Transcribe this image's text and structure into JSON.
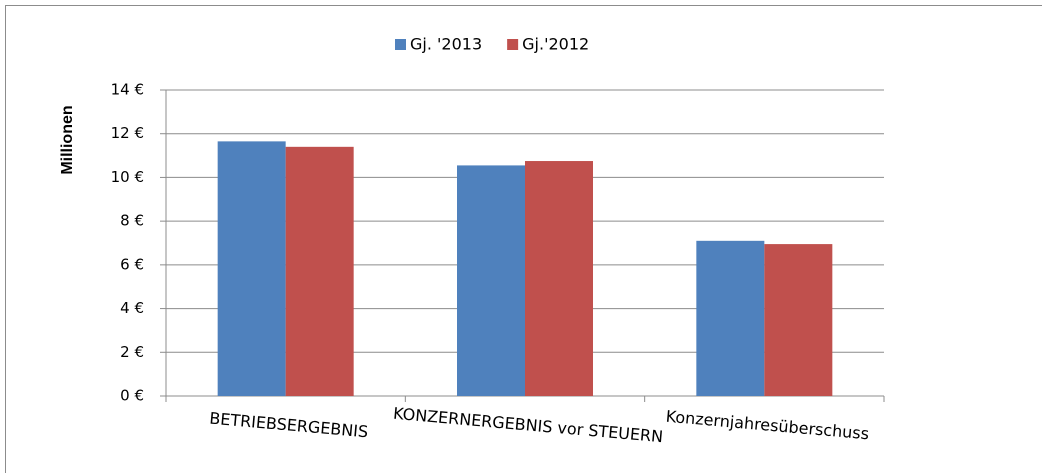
{
  "chart_data": {
    "type": "bar",
    "categories": [
      "BETRIEBSERGEBNIS",
      "KONZERNERGEBNIS vor STEUERN",
      "Konzernjahresüberschuss"
    ],
    "series": [
      {
        "name": "Gj. '2013",
        "color": "#4f81bd",
        "values": [
          11.65,
          10.55,
          7.1
        ]
      },
      {
        "name": "Gj.'2012",
        "color": "#c0504d",
        "values": [
          11.4,
          10.75,
          6.95
        ]
      }
    ],
    "y_label": "Millionen",
    "ylim": [
      0,
      14
    ],
    "yticks": [
      {
        "value": 0,
        "label": "0 €"
      },
      {
        "value": 2,
        "label": "2 €"
      },
      {
        "value": 4,
        "label": "4 €"
      },
      {
        "value": 6,
        "label": "6 €"
      },
      {
        "value": 8,
        "label": "8 €"
      },
      {
        "value": 10,
        "label": "10 €"
      },
      {
        "value": 12,
        "label": "12 €"
      },
      {
        "value": 14,
        "label": "14 €"
      }
    ],
    "grid": true,
    "legend": "top"
  }
}
